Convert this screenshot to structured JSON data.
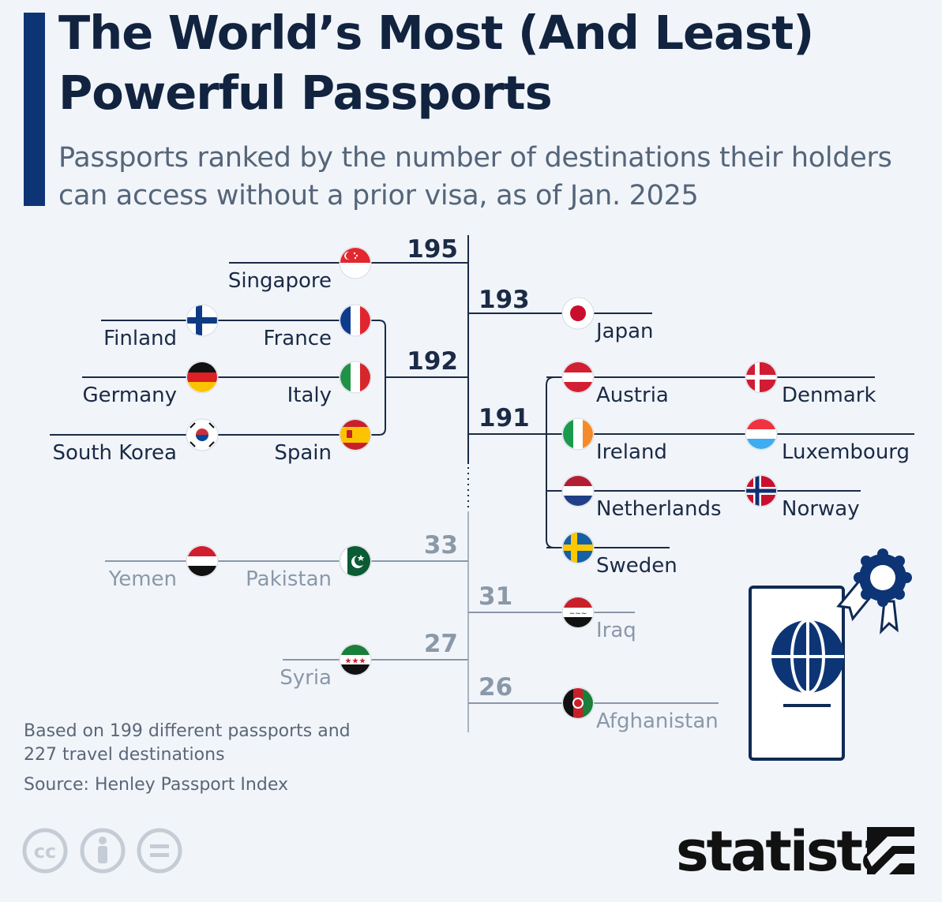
{
  "header": {
    "title": "The World’s Most (And Least) Powerful Passports",
    "subtitle": "Passports ranked by the number of destinations their holders can access without a prior visa, as of Jan. 2025"
  },
  "footer": {
    "note": "Based on 199 different passports and 227 travel destinations",
    "source": "Source: Henley Passport Index",
    "brand": "statista"
  },
  "colors": {
    "accent": "#0d3576",
    "top_tier": "#1b2a45",
    "bottom_tier": "#8a98a8",
    "background": "#f1f5fa"
  },
  "chart_data": {
    "type": "bracket",
    "title": "The World’s Most (And Least) Powerful Passports",
    "value_label": "Visa-free destinations",
    "scale_break": "axis broken between 191 and 33",
    "groups": [
      {
        "score": 195,
        "tier": "most",
        "side_labels": "left",
        "countries": [
          "Singapore"
        ]
      },
      {
        "score": 193,
        "tier": "most",
        "side_labels": "right",
        "countries": [
          "Japan"
        ]
      },
      {
        "score": 192,
        "tier": "most",
        "side_labels": "left",
        "countries": [
          "Finland",
          "France",
          "Germany",
          "Italy",
          "South Korea",
          "Spain"
        ]
      },
      {
        "score": 191,
        "tier": "most",
        "side_labels": "right",
        "countries": [
          "Austria",
          "Denmark",
          "Ireland",
          "Luxembourg",
          "Netherlands",
          "Norway",
          "Sweden"
        ]
      },
      {
        "score": 33,
        "tier": "least",
        "side_labels": "left",
        "countries": [
          "Yemen",
          "Pakistan"
        ]
      },
      {
        "score": 31,
        "tier": "least",
        "side_labels": "right",
        "countries": [
          "Iraq"
        ]
      },
      {
        "score": 27,
        "tier": "least",
        "side_labels": "left",
        "countries": [
          "Syria"
        ]
      },
      {
        "score": 26,
        "tier": "least",
        "side_labels": "right",
        "countries": [
          "Afghanistan"
        ]
      }
    ],
    "flags": {
      "Singapore": "singapore-flag-icon",
      "Japan": "japan-flag-icon",
      "Finland": "finland-flag-icon",
      "France": "france-flag-icon",
      "Germany": "germany-flag-icon",
      "Italy": "italy-flag-icon",
      "South Korea": "south-korea-flag-icon",
      "Spain": "spain-flag-icon",
      "Austria": "austria-flag-icon",
      "Denmark": "denmark-flag-icon",
      "Ireland": "ireland-flag-icon",
      "Luxembourg": "luxembourg-flag-icon",
      "Netherlands": "netherlands-flag-icon",
      "Norway": "norway-flag-icon",
      "Sweden": "sweden-flag-icon",
      "Yemen": "yemen-flag-icon",
      "Pakistan": "pakistan-flag-icon",
      "Iraq": "iraq-flag-icon",
      "Syria": "syria-flag-icon",
      "Afghanistan": "afghanistan-flag-icon"
    }
  }
}
